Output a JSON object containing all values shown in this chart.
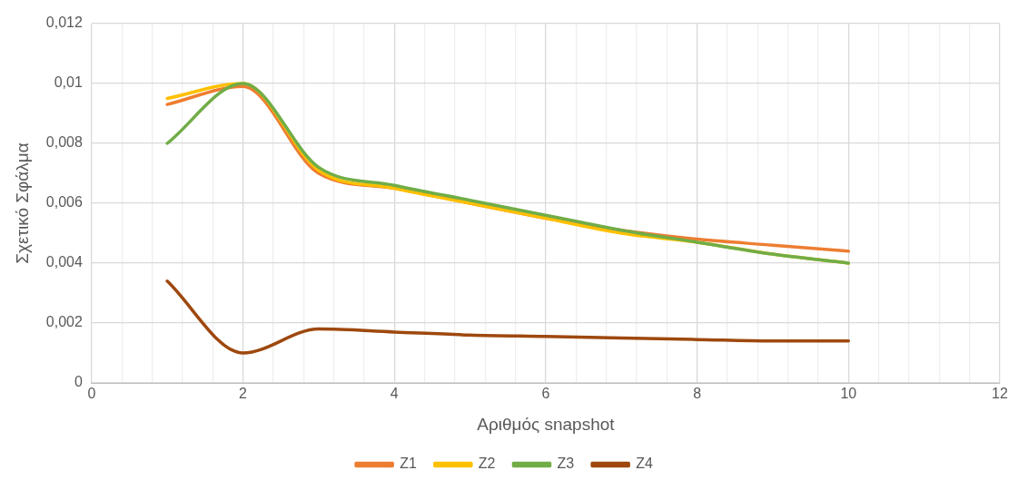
{
  "chart_data": {
    "type": "line",
    "xlabel": "Αριθμός snapshot",
    "ylabel": "Σχετικό Σφάλμα",
    "xlim": [
      0,
      12
    ],
    "xticks": [
      0,
      {
        "value": 0.4,
        "label": null
      },
      {
        "value": 0.8,
        "label": null
      },
      {
        "value": 1.2,
        "label": null
      },
      {
        "value": 1.6,
        "label": null
      },
      2,
      {
        "value": 2.4,
        "label": null
      },
      {
        "value": 2.8,
        "label": null
      },
      {
        "value": 3.2,
        "label": null
      },
      {
        "value": 3.6,
        "label": null
      },
      4,
      {
        "value": 4.4,
        "label": null
      },
      {
        "value": 4.8,
        "label": null
      },
      {
        "value": 5.2,
        "label": null
      },
      {
        "value": 5.6,
        "label": null
      },
      6,
      {
        "value": 6.4,
        "label": null
      },
      {
        "value": 6.8,
        "label": null
      },
      {
        "value": 7.2,
        "label": null
      },
      {
        "value": 7.6,
        "label": null
      },
      8,
      {
        "value": 8.4,
        "label": null
      },
      {
        "value": 8.8,
        "label": null
      },
      {
        "value": 9.2,
        "label": null
      },
      {
        "value": 9.6,
        "label": null
      },
      10,
      {
        "value": 10.4,
        "label": null
      },
      {
        "value": 10.8,
        "label": null
      },
      {
        "value": 11.2,
        "label": null
      },
      {
        "value": 11.6,
        "label": null
      },
      12
    ],
    "ylim": [
      0,
      0.012
    ],
    "yticks": [
      {
        "value": 0,
        "label": "0"
      },
      {
        "value": 0.002,
        "label": "0,002"
      },
      {
        "value": 0.004,
        "label": "0,004"
      },
      {
        "value": 0.006,
        "label": "0,006"
      },
      {
        "value": 0.008,
        "label": "0,008"
      },
      {
        "value": 0.01,
        "label": "0,01"
      },
      {
        "value": 0.012,
        "label": "0,012"
      }
    ],
    "x": [
      1,
      2,
      3,
      4,
      5,
      6,
      7,
      8,
      9,
      10
    ],
    "series": [
      {
        "name": "Z1",
        "color": "#ed7d31",
        "values": [
          0.0093,
          0.0099,
          0.007,
          0.0065,
          0.006,
          0.0055,
          0.0051,
          0.0048,
          0.0046,
          0.0044
        ]
      },
      {
        "name": "Z2",
        "color": "#ffc000",
        "values": [
          0.0095,
          0.01,
          0.0071,
          0.0065,
          0.006,
          0.0055,
          0.005,
          0.0047,
          0.0043,
          0.004
        ]
      },
      {
        "name": "Z3",
        "color": "#70ad47",
        "values": [
          0.008,
          0.01,
          0.0072,
          0.0066,
          0.0061,
          0.0056,
          0.0051,
          0.0047,
          0.0043,
          0.004
        ]
      },
      {
        "name": "Z4",
        "color": "#9e480e",
        "values": [
          0.0034,
          0.001,
          0.0018,
          0.0017,
          0.0016,
          0.00155,
          0.0015,
          0.00145,
          0.0014,
          0.0014
        ]
      }
    ],
    "grid": true,
    "legend": "bottom",
    "marker": "none",
    "line_style": "solid"
  }
}
